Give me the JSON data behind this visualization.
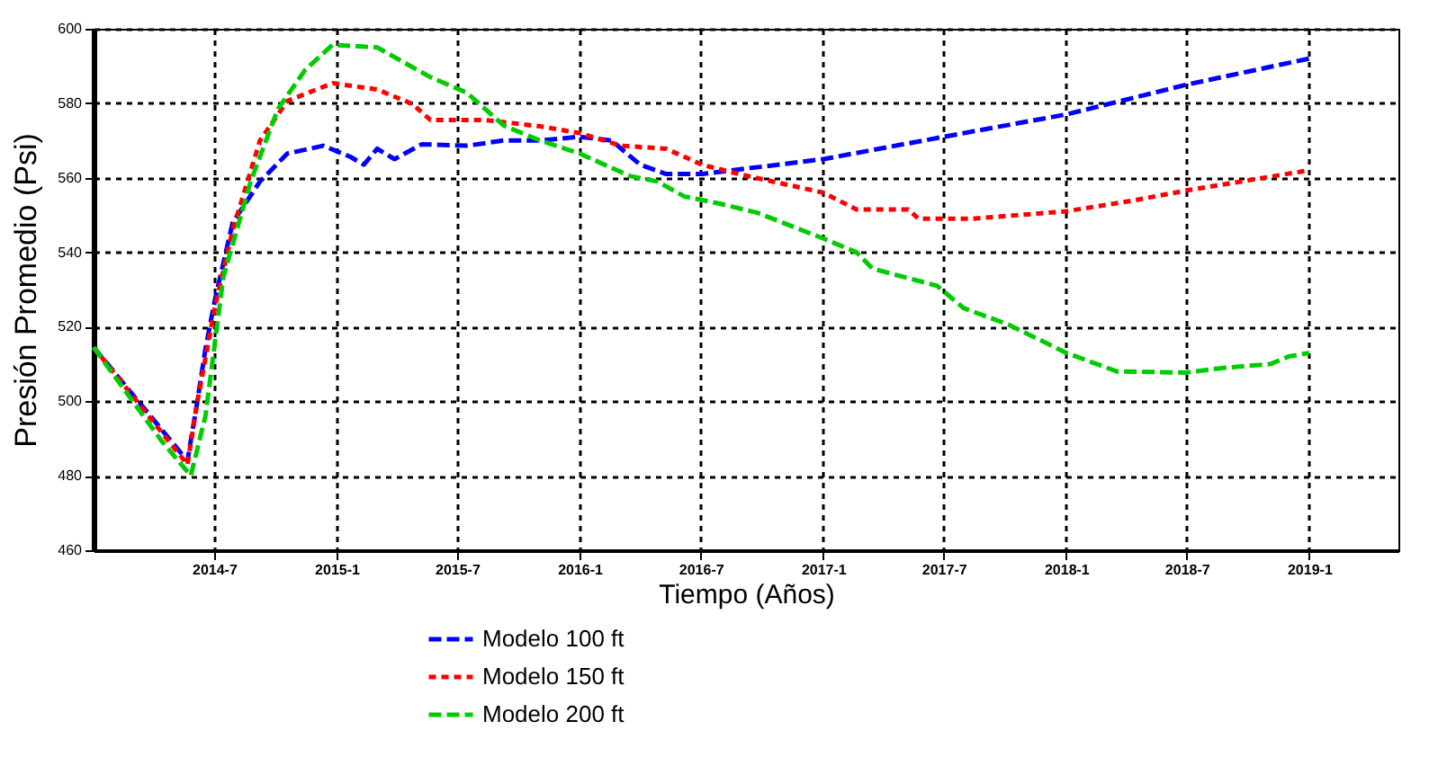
{
  "chart_data": {
    "type": "line",
    "xlabel": "Tiempo (Años)",
    "ylabel": "Presión Promedio (Psi)",
    "xlim": [
      "2014-01-01",
      "2019-05-15"
    ],
    "xticks": [
      {
        "value": "2014-07-01",
        "label": "2014-7"
      },
      {
        "value": "2015-01-01",
        "label": "2015-1"
      },
      {
        "value": "2015-07-01",
        "label": "2015-7"
      },
      {
        "value": "2016-01-01",
        "label": "2016-1"
      },
      {
        "value": "2016-07-01",
        "label": "2016-7"
      },
      {
        "value": "2017-01-01",
        "label": "2017-1"
      },
      {
        "value": "2017-07-01",
        "label": "2017-7"
      },
      {
        "value": "2018-01-01",
        "label": "2018-1"
      },
      {
        "value": "2018-07-01",
        "label": "2018-7"
      },
      {
        "value": "2019-01-01",
        "label": "2019-1"
      }
    ],
    "ylim": [
      460,
      600
    ],
    "yticks": [
      460,
      480,
      500,
      520,
      540,
      560,
      580,
      600
    ],
    "grid": true,
    "legend": "bottom",
    "marker": "none",
    "series": [
      {
        "name": "Modelo 100 ft",
        "color": "#0000ff",
        "line_style": "dashed",
        "x": [
          "2014-01-01",
          "2014-05-22",
          "2014-06-05",
          "2014-06-18",
          "2014-07-02",
          "2014-07-29",
          "2014-09-08",
          "2014-10-19",
          "2014-12-12",
          "2015-01-22",
          "2015-02-11",
          "2015-03-03",
          "2015-03-29",
          "2015-05-09",
          "2015-07-16",
          "2015-09-09",
          "2015-11-03",
          "2016-01-01",
          "2016-02-18",
          "2016-04-01",
          "2016-05-10",
          "2016-07-03",
          "2017-01-01",
          "2017-07-01",
          "2018-01-01",
          "2018-07-01",
          "2019-01-01"
        ],
        "values": [
          514.5,
          484,
          499,
          514,
          527,
          548,
          559,
          566.5,
          568.6,
          565.6,
          563.5,
          567.8,
          565,
          569,
          568.6,
          570,
          570,
          571,
          570,
          563.5,
          561,
          561,
          565,
          571,
          577,
          585,
          592
        ]
      },
      {
        "name": "Modelo 150 ft",
        "color": "#ff0000",
        "line_style": "dotted",
        "x": [
          "2014-01-01",
          "2014-05-22",
          "2014-06-05",
          "2014-07-02",
          "2014-07-29",
          "2014-09-08",
          "2014-10-19",
          "2014-12-26",
          "2015-03-03",
          "2015-04-25",
          "2015-05-22",
          "2015-08-12",
          "2015-11-03",
          "2016-01-01",
          "2016-03-03",
          "2016-05-10",
          "2016-07-03",
          "2016-08-27",
          "2017-01-01",
          "2017-02-20",
          "2017-05-09",
          "2017-05-24",
          "2017-08-13",
          "2018-01-01",
          "2018-04-15",
          "2018-07-01",
          "2019-01-01"
        ],
        "values": [
          514.5,
          483,
          499,
          525,
          546,
          570,
          580.6,
          585.4,
          583.7,
          579.8,
          575.5,
          575.5,
          573.8,
          572,
          568.6,
          567.8,
          563.5,
          561,
          556,
          551.5,
          551.5,
          549,
          549,
          551,
          554,
          556.6,
          562
        ]
      },
      {
        "name": "Modelo 200 ft",
        "color": "#00cc00",
        "line_style": "dashed",
        "x": [
          "2014-01-01",
          "2014-04-12",
          "2014-05-27",
          "2014-06-18",
          "2014-07-15",
          "2014-08-25",
          "2014-10-05",
          "2014-11-15",
          "2014-12-26",
          "2015-03-03",
          "2015-04-12",
          "2015-05-22",
          "2015-07-16",
          "2015-09-09",
          "2015-11-03",
          "2016-01-01",
          "2016-03-16",
          "2016-04-27",
          "2016-06-06",
          "2016-07-31",
          "2016-09-24",
          "2017-01-01",
          "2017-02-20",
          "2017-03-16",
          "2017-06-21",
          "2017-07-31",
          "2017-10-06",
          "2018-01-01",
          "2018-03-18",
          "2018-07-01",
          "2018-08-28",
          "2018-11-04",
          "2018-12-01",
          "2019-01-01"
        ],
        "values": [
          514.5,
          489.6,
          480,
          496,
          533.4,
          559,
          578.5,
          589,
          595.7,
          595,
          591,
          587,
          582.8,
          574,
          570,
          566.5,
          560.5,
          559,
          555,
          553,
          550.6,
          543.7,
          540,
          535.6,
          531,
          525,
          520.6,
          513,
          508,
          507.7,
          509,
          510,
          512,
          513
        ]
      }
    ]
  }
}
